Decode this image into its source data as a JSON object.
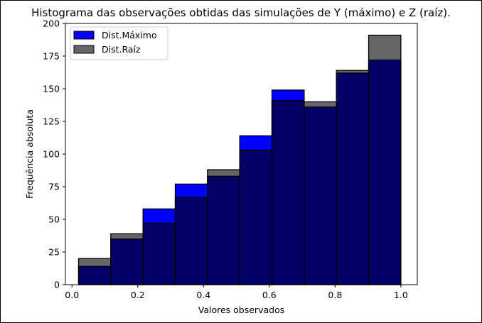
{
  "chart_data": {
    "type": "bar",
    "title": "Histograma das observações obtidas das simulações de Y (máximo) e Z (raíz).",
    "xlabel": "Valores observados",
    "ylabel": "Frequência absoluta",
    "xlim": [
      -0.02,
      1.05
    ],
    "ylim": [
      0,
      200
    ],
    "xticks": [
      0.0,
      0.2,
      0.4,
      0.6,
      0.8,
      1.0
    ],
    "xtick_labels": [
      "0.0",
      "0.2",
      "0.4",
      "0.6",
      "0.8",
      "1.0"
    ],
    "yticks": [
      0,
      25,
      50,
      75,
      100,
      125,
      150,
      175,
      200
    ],
    "ytick_labels": [
      "0",
      "25",
      "50",
      "75",
      "100",
      "125",
      "150",
      "175",
      "200"
    ],
    "grid": false,
    "legend_position": "top-left",
    "series": [
      {
        "name": "Dist.Máximo",
        "color": "#0000ff",
        "edgecolor": "#000000",
        "bins": [
          [
            0.02,
            0.118,
            14
          ],
          [
            0.118,
            0.216,
            35
          ],
          [
            0.216,
            0.314,
            58
          ],
          [
            0.314,
            0.412,
            77
          ],
          [
            0.412,
            0.51,
            83
          ],
          [
            0.51,
            0.608,
            114
          ],
          [
            0.608,
            0.706,
            149
          ],
          [
            0.706,
            0.804,
            136
          ],
          [
            0.804,
            0.902,
            162
          ],
          [
            0.902,
            1.0,
            172
          ]
        ]
      },
      {
        "name": "Dist.Raíz",
        "color": "#000000",
        "alpha": 0.6,
        "edgecolor": "#000000",
        "bins": [
          [
            0.02,
            0.118,
            20
          ],
          [
            0.118,
            0.216,
            39
          ],
          [
            0.216,
            0.314,
            47
          ],
          [
            0.314,
            0.412,
            67
          ],
          [
            0.412,
            0.51,
            88
          ],
          [
            0.51,
            0.608,
            103
          ],
          [
            0.608,
            0.706,
            141
          ],
          [
            0.706,
            0.804,
            140
          ],
          [
            0.804,
            0.902,
            164
          ],
          [
            0.902,
            1.0,
            191
          ]
        ]
      }
    ]
  }
}
